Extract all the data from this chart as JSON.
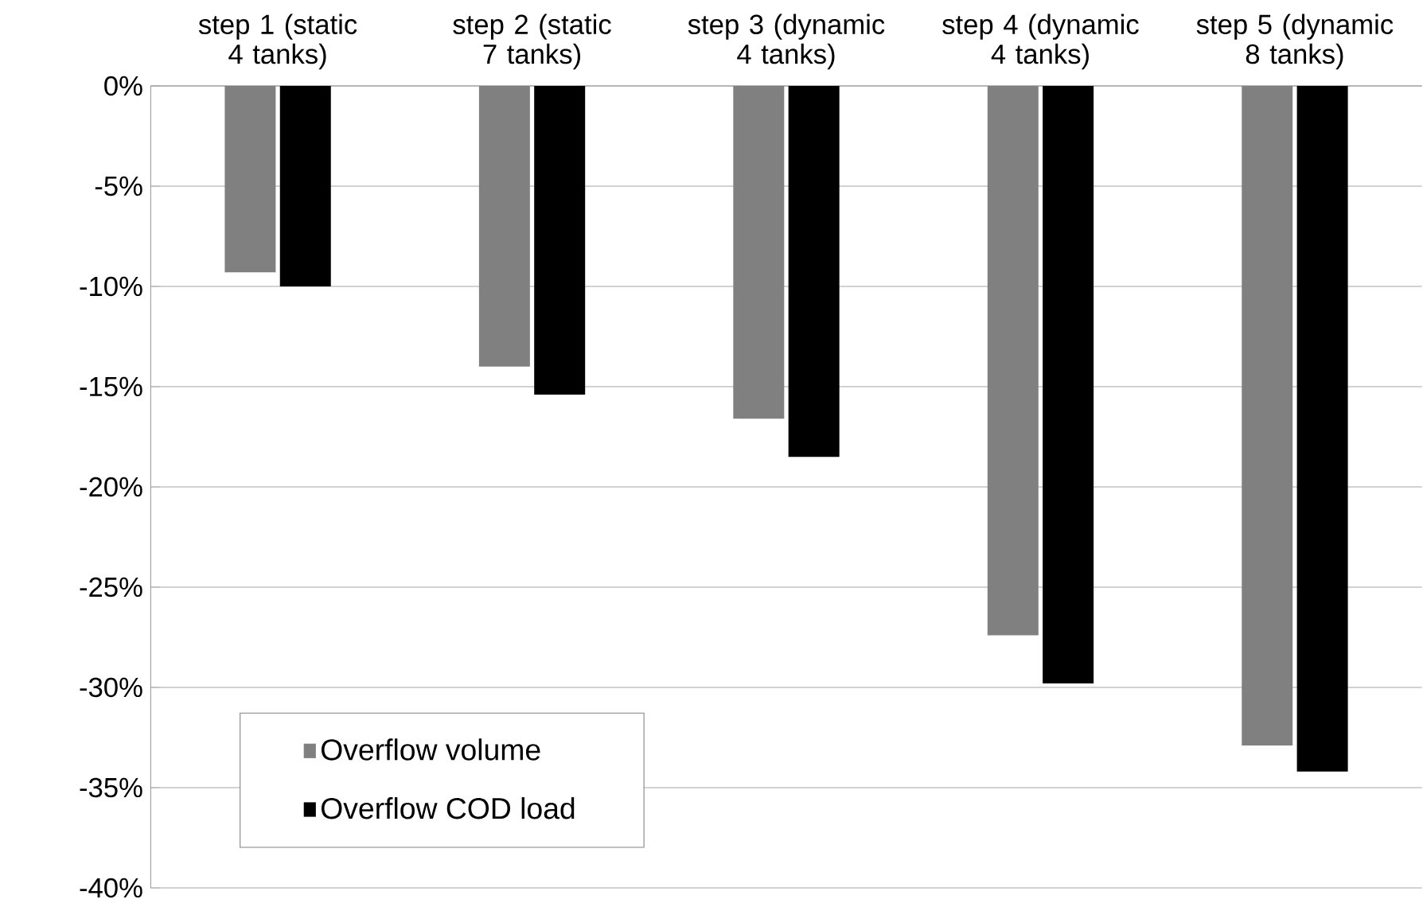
{
  "chart_data": {
    "type": "bar",
    "categories": [
      "step 1 (static 4 tanks)",
      "step 2 (static 7 tanks)",
      "step 3 (dynamic 4 tanks)",
      "step 4 (dynamic 4 tanks)",
      "step 5 (dynamic 8 tanks)"
    ],
    "series": [
      {
        "name": "Overflow volume",
        "color": "#808080",
        "values": [
          -9.3,
          -14.0,
          -16.6,
          -27.4,
          -32.9
        ]
      },
      {
        "name": "Overflow COD load",
        "color": "#000000",
        "values": [
          -10.0,
          -15.4,
          -18.5,
          -29.8,
          -34.2
        ]
      }
    ],
    "ylim": [
      -40,
      0
    ],
    "yticks": [
      {
        "value": -40,
        "label": "-40%"
      },
      {
        "value": -35,
        "label": "-35%"
      },
      {
        "value": -30,
        "label": "-30%"
      },
      {
        "value": -25,
        "label": "-25%"
      },
      {
        "value": -20,
        "label": "-20%"
      },
      {
        "value": -15,
        "label": "-15%"
      },
      {
        "value": -10,
        "label": "-10%"
      },
      {
        "value": -5,
        "label": "-5%"
      },
      {
        "value": 0,
        "label": "0%"
      }
    ],
    "grid": "y",
    "legend": "bottom left"
  }
}
